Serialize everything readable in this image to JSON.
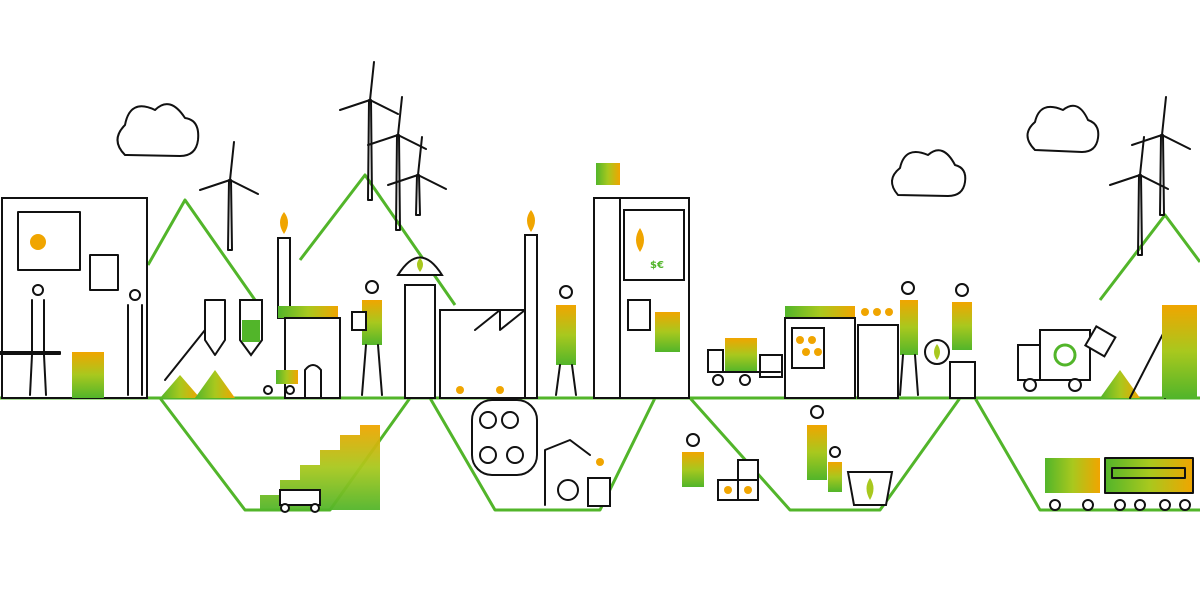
{
  "illustration": {
    "screen_symbols": "$€",
    "colors": {
      "green": "#52b52a",
      "orange": "#f0a500",
      "yellow_green": "#a8c81e",
      "line": "#111111"
    },
    "icons": [
      "wind-turbine-icon",
      "cloud-icon",
      "factory-icon",
      "recycle-icon",
      "leaf-icon",
      "train-icon",
      "truck-icon"
    ]
  }
}
